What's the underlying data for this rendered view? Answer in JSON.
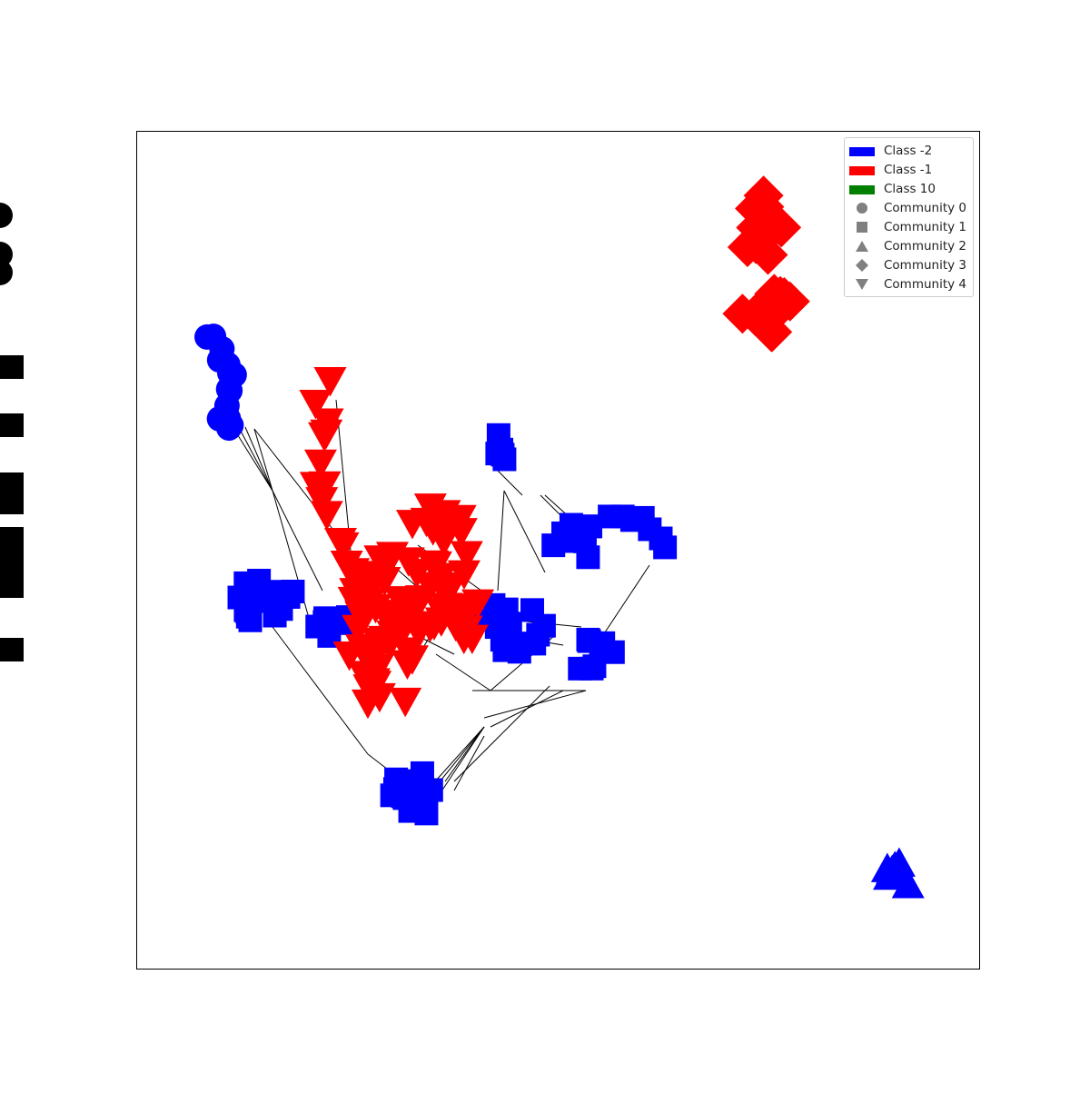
{
  "legend": {
    "classes": [
      {
        "label": "Class -2",
        "color": "#0000ff"
      },
      {
        "label": "Class -1",
        "color": "#ff0000"
      },
      {
        "label": "Class 10",
        "color": "#008000"
      }
    ],
    "communities": [
      {
        "label": "Community 0",
        "marker": "circle"
      },
      {
        "label": "Community 1",
        "marker": "square"
      },
      {
        "label": "Community 2",
        "marker": "triangle-up"
      },
      {
        "label": "Community 3",
        "marker": "diamond"
      },
      {
        "label": "Community 4",
        "marker": "triangle-down"
      }
    ],
    "marker_color": "#808080"
  },
  "colors": {
    "class_-2": "#0000ff",
    "class_-1": "#ff0000",
    "class_10": "#008000",
    "edge": "#000000"
  }
}
